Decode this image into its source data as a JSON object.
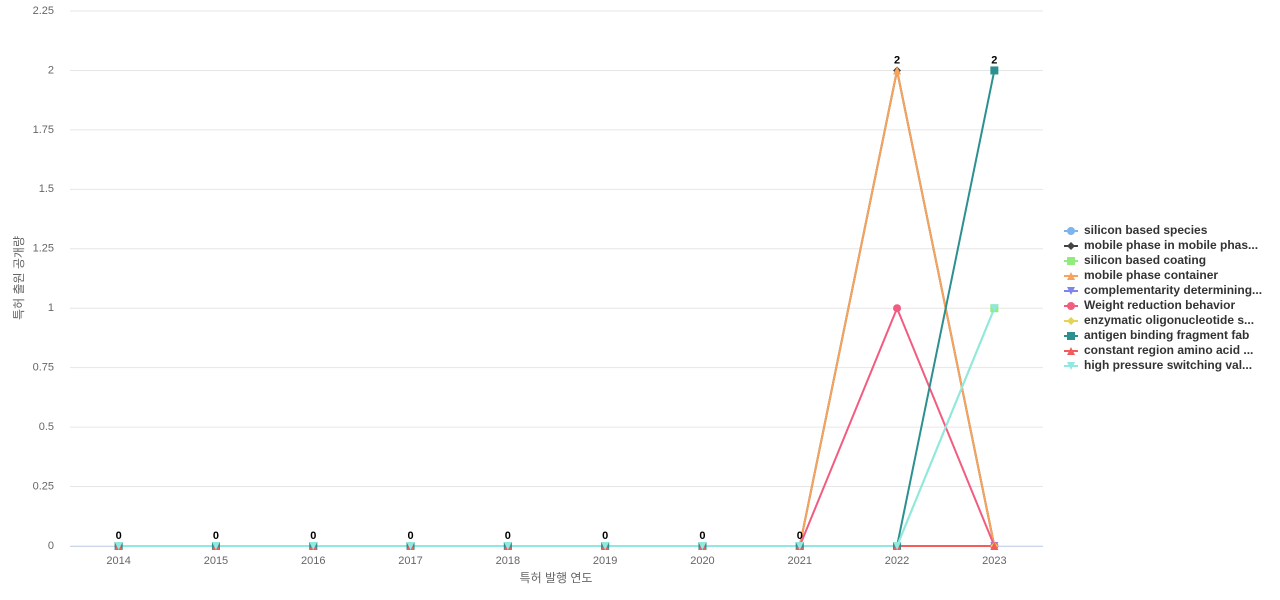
{
  "chart_data": {
    "type": "line",
    "x_label": "특허 발행 연도",
    "y_label": "특허 출원 공개량",
    "categories": [
      "2014",
      "2015",
      "2016",
      "2017",
      "2018",
      "2019",
      "2020",
      "2021",
      "2022",
      "2023"
    ],
    "ylim": [
      0,
      2.25
    ],
    "yticks": [
      0,
      0.25,
      0.5,
      0.75,
      1,
      1.25,
      1.5,
      1.75,
      2,
      2.25
    ],
    "grid": true,
    "legend": "right",
    "series": [
      {
        "name": "silicon based species",
        "color": "#7cb5ec",
        "marker": "circle",
        "values": [
          0,
          0,
          0,
          0,
          0,
          0,
          0,
          0,
          0,
          0
        ]
      },
      {
        "name": "mobile phase in mobile phas...",
        "color": "#434348",
        "marker": "diamond",
        "values": [
          0,
          0,
          0,
          0,
          0,
          0,
          0,
          0,
          2,
          0
        ]
      },
      {
        "name": "silicon based coating",
        "color": "#90ed7d",
        "marker": "square",
        "values": [
          0,
          0,
          0,
          0,
          0,
          0,
          0,
          0,
          0,
          1
        ]
      },
      {
        "name": "mobile phase container",
        "color": "#f7a35c",
        "marker": "triangle",
        "values": [
          0,
          0,
          0,
          0,
          0,
          0,
          0,
          0,
          2,
          0
        ]
      },
      {
        "name": "complementarity determining...",
        "color": "#8085e9",
        "marker": "triangle-down",
        "values": [
          0,
          0,
          0,
          0,
          0,
          0,
          0,
          0,
          0,
          0
        ]
      },
      {
        "name": "Weight reduction behavior",
        "color": "#f15c80",
        "marker": "circle",
        "values": [
          0,
          0,
          0,
          0,
          0,
          0,
          0,
          0,
          1,
          0
        ]
      },
      {
        "name": "enzymatic oligonucleotide s...",
        "color": "#e4d354",
        "marker": "diamond",
        "values": [
          0,
          0,
          0,
          0,
          0,
          0,
          0,
          0,
          0,
          0
        ]
      },
      {
        "name": "antigen binding fragment fab",
        "color": "#2b908f",
        "marker": "square",
        "values": [
          0,
          0,
          0,
          0,
          0,
          0,
          0,
          0,
          0,
          2
        ]
      },
      {
        "name": "constant region amino acid ...",
        "color": "#f45b5b",
        "marker": "triangle",
        "values": [
          0,
          0,
          0,
          0,
          0,
          0,
          0,
          0,
          0,
          0
        ]
      },
      {
        "name": "high pressure switching val...",
        "color": "#91e8e1",
        "marker": "triangle-down",
        "values": [
          0,
          0,
          0,
          0,
          0,
          0,
          0,
          0,
          0,
          1
        ]
      }
    ]
  }
}
